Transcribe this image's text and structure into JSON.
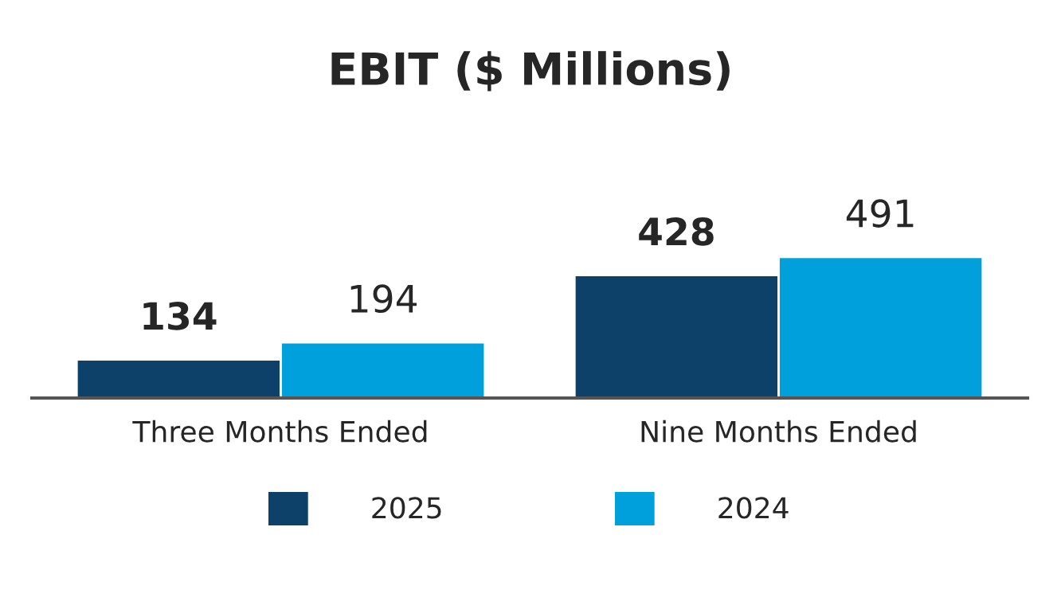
{
  "chart_data": {
    "type": "bar",
    "title": "EBIT ($ Millions)",
    "categories": [
      "Three Months Ended",
      "Nine Months Ended"
    ],
    "series": [
      {
        "name": "2025",
        "color": "#0d4169",
        "values": [
          134,
          428
        ]
      },
      {
        "name": "2024",
        "color": "#00a0dc",
        "values": [
          194,
          491
        ]
      }
    ],
    "data_labels": true,
    "legend": "bottom",
    "grid": false
  }
}
